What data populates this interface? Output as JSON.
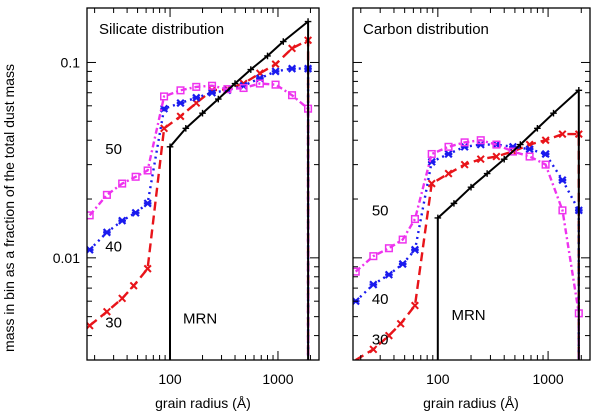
{
  "ylabel": "mass in bin as a fraction of the total dust mass",
  "colors": {
    "MRN": "#000000",
    "30": "#e8141a",
    "40": "#1a1aee",
    "50": "#ee33ee"
  },
  "chart_data": [
    {
      "type": "line",
      "title": "Silicate distribution",
      "xlabel": "grain radius (Å)",
      "xscale": "log",
      "yscale": "log",
      "xlim": [
        17,
        2400
      ],
      "ylim": [
        0.003,
        0.19
      ],
      "xticks": [
        100,
        1000
      ],
      "xtick_labels": [
        "100",
        "1000"
      ],
      "yticks": [
        0.01,
        0.1
      ],
      "ytick_labels": [
        "0.01",
        "0.1"
      ],
      "series": [
        {
          "name": "MRN",
          "dash": "solid",
          "marker": "plus",
          "x": [
            100,
            100,
            140,
            200,
            280,
            400,
            560,
            800,
            1120,
            1900,
            1900
          ],
          "y": [
            0.003,
            0.037,
            0.046,
            0.055,
            0.065,
            0.078,
            0.092,
            0.108,
            0.128,
            0.162,
            0.003
          ]
        },
        {
          "name": "30",
          "dash": "dashed",
          "marker": "x",
          "x": [
            18,
            26,
            36,
            46,
            62,
            88,
            125,
            175,
            245,
            340,
            480,
            680,
            950,
            1350,
            1900,
            1900
          ],
          "y": [
            0.0045,
            0.0053,
            0.0062,
            0.0072,
            0.0088,
            0.046,
            0.053,
            0.062,
            0.072,
            0.073,
            0.078,
            0.088,
            0.098,
            0.118,
            0.13,
            0.003
          ]
        },
        {
          "name": "40",
          "dash": "dotted",
          "marker": "star",
          "x": [
            18,
            26,
            36,
            48,
            62,
            88,
            125,
            175,
            245,
            340,
            480,
            680,
            950,
            1350,
            1900,
            1900
          ],
          "y": [
            0.011,
            0.0135,
            0.0155,
            0.017,
            0.019,
            0.058,
            0.062,
            0.066,
            0.07,
            0.072,
            0.076,
            0.083,
            0.09,
            0.093,
            0.093,
            0.003
          ]
        },
        {
          "name": "50",
          "dash": "dashdot",
          "marker": "square",
          "x": [
            18,
            26,
            36,
            48,
            62,
            88,
            125,
            175,
            245,
            340,
            480,
            680,
            950,
            1350,
            1900,
            1900
          ],
          "y": [
            0.0165,
            0.021,
            0.024,
            0.026,
            0.028,
            0.067,
            0.072,
            0.075,
            0.076,
            0.073,
            0.074,
            0.078,
            0.077,
            0.068,
            0.058,
            0.003
          ]
        }
      ],
      "annotations": [
        {
          "text": "50",
          "x": 30,
          "y": 0.034
        },
        {
          "text": "40",
          "x": 30,
          "y": 0.0108
        },
        {
          "text": "30",
          "x": 30,
          "y": 0.0044
        },
        {
          "text": "MRN",
          "x": 190,
          "y": 0.0046
        }
      ]
    },
    {
      "type": "line",
      "title": "Carbon distribution",
      "xlabel": "grain radius (Å)",
      "xscale": "log",
      "yscale": "log",
      "xlim": [
        17,
        2400
      ],
      "ylim": [
        0.003,
        0.19
      ],
      "xticks": [
        100,
        1000
      ],
      "xtick_labels": [
        "100",
        "1000"
      ],
      "yticks": [
        0.01,
        0.1
      ],
      "ytick_labels": [
        "",
        ""
      ],
      "series": [
        {
          "name": "MRN",
          "dash": "solid",
          "marker": "plus",
          "x": [
            100,
            100,
            140,
            200,
            280,
            400,
            560,
            800,
            1120,
            1900,
            1900
          ],
          "y": [
            0.003,
            0.016,
            0.019,
            0.023,
            0.027,
            0.032,
            0.038,
            0.046,
            0.055,
            0.072,
            0.003
          ]
        },
        {
          "name": "30",
          "dash": "dashed",
          "marker": "x",
          "x": [
            18,
            26,
            36,
            46,
            62,
            88,
            125,
            175,
            245,
            340,
            480,
            680,
            950,
            1350,
            1900,
            1900
          ],
          "y": [
            0.003,
            0.0034,
            0.004,
            0.0046,
            0.0057,
            0.024,
            0.027,
            0.03,
            0.032,
            0.033,
            0.035,
            0.038,
            0.04,
            0.043,
            0.043,
            0.003
          ]
        },
        {
          "name": "40",
          "dash": "dotted",
          "marker": "star",
          "x": [
            18,
            26,
            36,
            48,
            62,
            88,
            125,
            175,
            245,
            340,
            480,
            680,
            950,
            1350,
            1900,
            1900
          ],
          "y": [
            0.006,
            0.0073,
            0.0082,
            0.0093,
            0.011,
            0.031,
            0.034,
            0.037,
            0.038,
            0.038,
            0.037,
            0.036,
            0.034,
            0.025,
            0.0175,
            0.003
          ]
        },
        {
          "name": "50",
          "dash": "dashdot",
          "marker": "square",
          "x": [
            18,
            26,
            36,
            48,
            62,
            88,
            125,
            175,
            245,
            340,
            480,
            680,
            950,
            1350,
            1900,
            1900
          ],
          "y": [
            0.0085,
            0.0102,
            0.0112,
            0.0124,
            0.0158,
            0.034,
            0.037,
            0.039,
            0.04,
            0.038,
            0.035,
            0.033,
            0.03,
            0.0175,
            0.0052,
            0.003
          ]
        }
      ],
      "annotations": [
        {
          "text": "50",
          "x": 30,
          "y": 0.0165
        },
        {
          "text": "40",
          "x": 30,
          "y": 0.0058
        },
        {
          "text": "30",
          "x": 30,
          "y": 0.0036
        },
        {
          "text": "MRN",
          "x": 190,
          "y": 0.0048
        }
      ]
    }
  ]
}
